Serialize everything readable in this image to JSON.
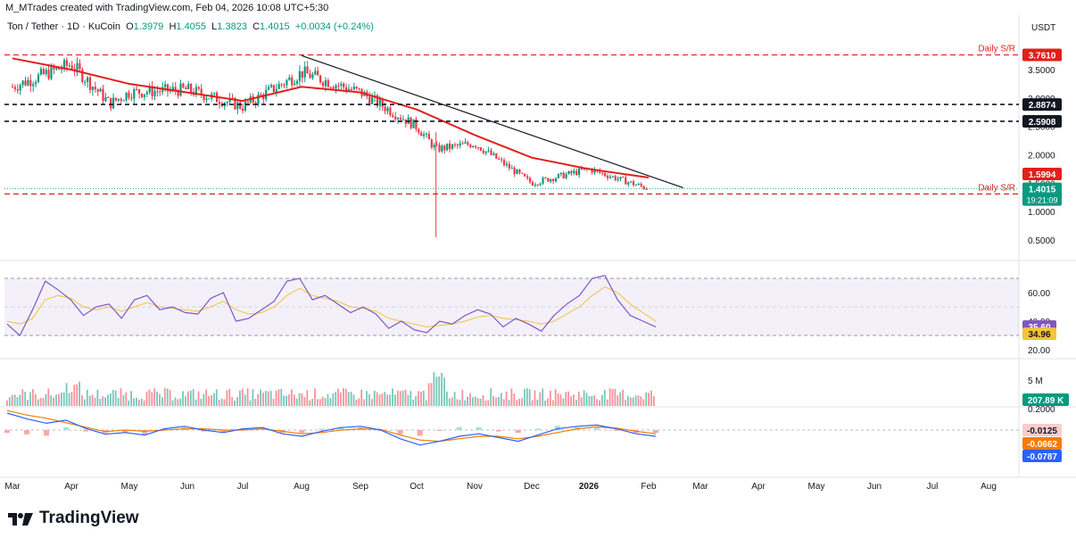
{
  "header": {
    "credit": "M_MTrades created with TradingView.com, Feb 04, 2026 10:08 UTC+5:30",
    "symbol": "Ton / Tether · 1D · KuCoin",
    "o_label": "O",
    "o": "1.3979",
    "h_label": "H",
    "h": "1.4055",
    "l_label": "L",
    "l": "1.3823",
    "c_label": "C",
    "c": "1.4015",
    "change": "+0.0034 (+0.24%)",
    "currency": "USDT"
  },
  "brand": {
    "name": "TradingView"
  },
  "colors": {
    "up": "#089981",
    "down": "#f23645",
    "ema": "#e0201b",
    "trend": "#131722",
    "sr": "#e0201b",
    "rsi": "#7e57c2",
    "rsi_ma": "#f5c23b",
    "macd": "#2962ff",
    "signal": "#f57c00",
    "hist_up": "#a8dde1",
    "hist_dn": "#f7a9a7"
  },
  "chart_data": [
    {
      "type": "candlestick",
      "title": "Ton / Tether · 1D · KuCoin",
      "x_ticks": [
        "Mar",
        "Apr",
        "May",
        "Jun",
        "Jul",
        "Aug",
        "Sep",
        "Oct",
        "Nov",
        "Dec",
        "2026",
        "Feb",
        "Mar",
        "Apr",
        "May",
        "Jun",
        "Jul",
        "Aug"
      ],
      "y_ticks": [
        "3.5000",
        "3.0000",
        "2.5000",
        "2.0000",
        "1.5000",
        "1.0000",
        "0.5000"
      ],
      "ylim": [
        0.2,
        4.1
      ],
      "price_path": [
        {
          "x": "Mar",
          "y": 3.2
        },
        {
          "x": "Apr",
          "y": 3.6
        },
        {
          "x": "Apr 20",
          "y": 2.9
        },
        {
          "x": "May",
          "y": 3.1
        },
        {
          "x": "Jun",
          "y": 3.15
        },
        {
          "x": "Jul",
          "y": 2.85
        },
        {
          "x": "Aug",
          "y": 3.45
        },
        {
          "x": "Sep",
          "y": 3.1
        },
        {
          "x": "Oct",
          "y": 2.5
        },
        {
          "x": "Oct 10",
          "y": 2.1
        },
        {
          "x": "Nov",
          "y": 2.2
        },
        {
          "x": "Dec",
          "y": 1.5
        },
        {
          "x": "2026",
          "y": 1.75
        },
        {
          "x": "Feb",
          "y": 1.4
        }
      ],
      "ema": [
        {
          "x": "Mar",
          "y": 3.7
        },
        {
          "x": "Apr",
          "y": 3.5
        },
        {
          "x": "May",
          "y": 3.25
        },
        {
          "x": "Jun",
          "y": 3.1
        },
        {
          "x": "Jul",
          "y": 2.95
        },
        {
          "x": "Aug",
          "y": 3.2
        },
        {
          "x": "Sep",
          "y": 3.1
        },
        {
          "x": "Oct",
          "y": 2.8
        },
        {
          "x": "Nov",
          "y": 2.35
        },
        {
          "x": "Dec",
          "y": 1.95
        },
        {
          "x": "2026",
          "y": 1.75
        },
        {
          "x": "Feb",
          "y": 1.6
        }
      ],
      "trendline": [
        {
          "x": "Aug",
          "y": 3.75
        },
        {
          "x": "Feb 20",
          "y": 1.42
        }
      ],
      "levels": [
        {
          "label": "Daily S/R",
          "value": "3.7610",
          "style": "dashed-red"
        },
        {
          "label": "",
          "value": "2.8874",
          "style": "dashed-black"
        },
        {
          "label": "",
          "value": "2.5908",
          "style": "dashed-black"
        },
        {
          "label": "Daily S/R",
          "value": "1.3105",
          "style": "dashed-red"
        }
      ],
      "last_price": "1.4015",
      "countdown": "19:21:09",
      "ema_value": "1.5994"
    },
    {
      "type": "line",
      "title": "RSI",
      "y_ticks": [
        "60.00",
        "40.00",
        "20.00"
      ],
      "band": [
        30,
        70
      ],
      "ylim": [
        15,
        80
      ],
      "series": [
        {
          "values": [
            38,
            30,
            48,
            68,
            62,
            55,
            44,
            50,
            52,
            42,
            55,
            58,
            48,
            50,
            46,
            45,
            56,
            60,
            40,
            42,
            48,
            54,
            68,
            70,
            55,
            58,
            52,
            46,
            50,
            45,
            35,
            40,
            34,
            32,
            40,
            38,
            44,
            48,
            45,
            36,
            42,
            38,
            33,
            44,
            52,
            58,
            70,
            72,
            55,
            44,
            40,
            36
          ]
        },
        {
          "values": [
            40,
            38,
            42,
            55,
            58,
            56,
            50,
            48,
            50,
            47,
            50,
            53,
            50,
            49,
            48,
            47,
            50,
            54,
            48,
            45,
            46,
            50,
            58,
            63,
            58,
            56,
            54,
            50,
            49,
            47,
            42,
            40,
            38,
            36,
            37,
            38,
            40,
            43,
            44,
            42,
            41,
            40,
            38,
            40,
            45,
            50,
            58,
            64,
            60,
            52,
            46,
            40
          ]
        }
      ],
      "rsi_value": "35.60",
      "rsi_ma_value": "34.96"
    },
    {
      "type": "bar",
      "title": "Volume",
      "y_ticks": [
        "5 M"
      ],
      "volume_value": "207.89 K"
    },
    {
      "type": "line",
      "title": "MACD",
      "y_ticks": [
        "0.2000"
      ],
      "macd_value": "-0.0787",
      "signal_value": "-0.0662",
      "hist_value": "-0.0125"
    }
  ]
}
